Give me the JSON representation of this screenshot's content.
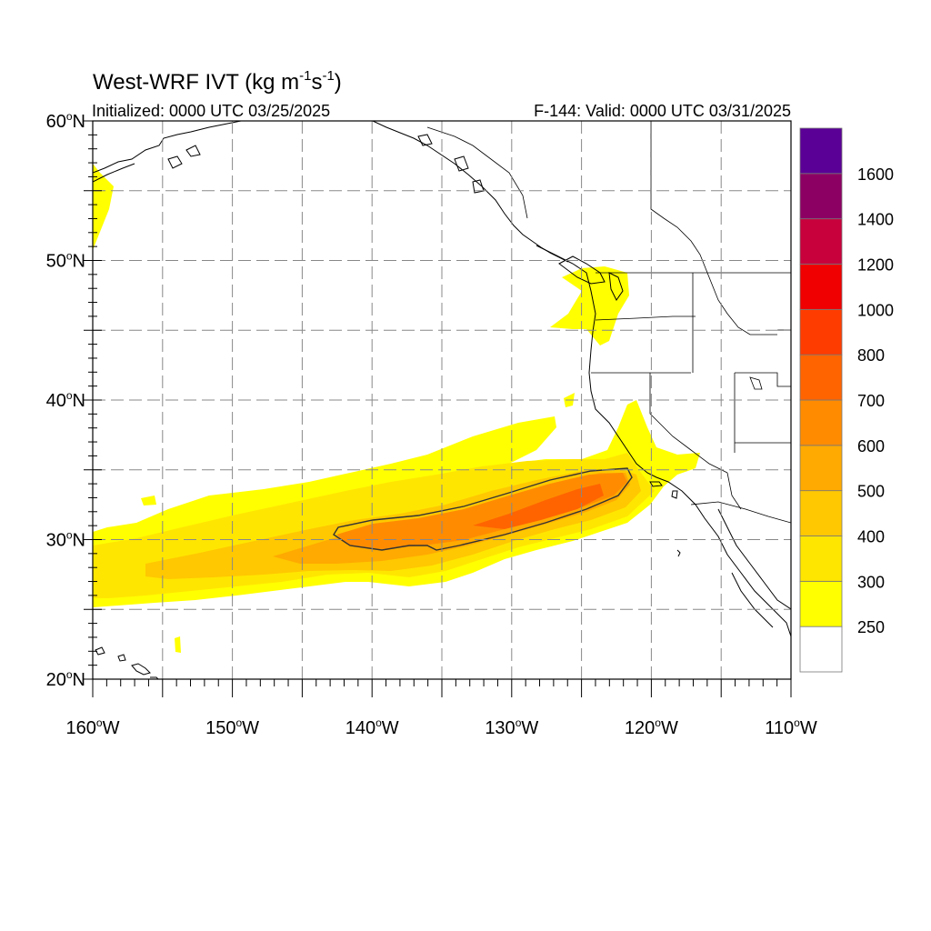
{
  "title": {
    "text": "West-WRF IVT (kg m",
    "sup1": "-1",
    "mid": "s",
    "sup2": "-1",
    "end": ")"
  },
  "subtitle_left": "Initialized: 0000 UTC 03/25/2025",
  "subtitle_right": "F-144: Valid: 0000 UTC 03/31/2025",
  "axes": {
    "lat_labels": [
      {
        "value": 60,
        "label": "60",
        "suffix": "N"
      },
      {
        "value": 50,
        "label": "50",
        "suffix": "N"
      },
      {
        "value": 40,
        "label": "40",
        "suffix": "N"
      },
      {
        "value": 30,
        "label": "30",
        "suffix": "N"
      },
      {
        "value": 20,
        "label": "20",
        "suffix": "N"
      }
    ],
    "lon_labels": [
      {
        "value": -160,
        "label": "160",
        "suffix": "W"
      },
      {
        "value": -150,
        "label": "150",
        "suffix": "W"
      },
      {
        "value": -140,
        "label": "140",
        "suffix": "W"
      },
      {
        "value": -130,
        "label": "130",
        "suffix": "W"
      },
      {
        "value": -120,
        "label": "120",
        "suffix": "W"
      },
      {
        "value": -110,
        "label": "110",
        "suffix": "W"
      }
    ],
    "lat_range": [
      20,
      60
    ],
    "lon_range": [
      -160,
      -110
    ],
    "grid_lat": [
      25,
      30,
      35,
      40,
      45,
      50,
      55
    ],
    "grid_lon": [
      -155,
      -150,
      -145,
      -140,
      -135,
      -130,
      -125,
      -120,
      -115
    ],
    "grid": true
  },
  "colorbar": {
    "placement": "right",
    "levels": [
      {
        "value": "",
        "color": "#ffffff"
      },
      {
        "value": "250",
        "color": "#ffff00"
      },
      {
        "value": "300",
        "color": "#ffe600"
      },
      {
        "value": "400",
        "color": "#ffc800"
      },
      {
        "value": "500",
        "color": "#ffaa00"
      },
      {
        "value": "600",
        "color": "#ff8c00"
      },
      {
        "value": "700",
        "color": "#ff6400"
      },
      {
        "value": "800",
        "color": "#ff3c00"
      },
      {
        "value": "1000",
        "color": "#f00000"
      },
      {
        "value": "1200",
        "color": "#c8003c"
      },
      {
        "value": "1400",
        "color": "#8c0064"
      },
      {
        "value": "1600",
        "color": "#5a0096"
      }
    ]
  },
  "colors": {
    "ivt_250": "#ffff00",
    "ivt_300": "#ffe600",
    "ivt_400": "#ffc800",
    "ivt_500": "#ffaa00",
    "ivt_600": "#ff8c00",
    "ivt_700": "#ff6400",
    "coast": "#000000",
    "grid": "#888888"
  }
}
